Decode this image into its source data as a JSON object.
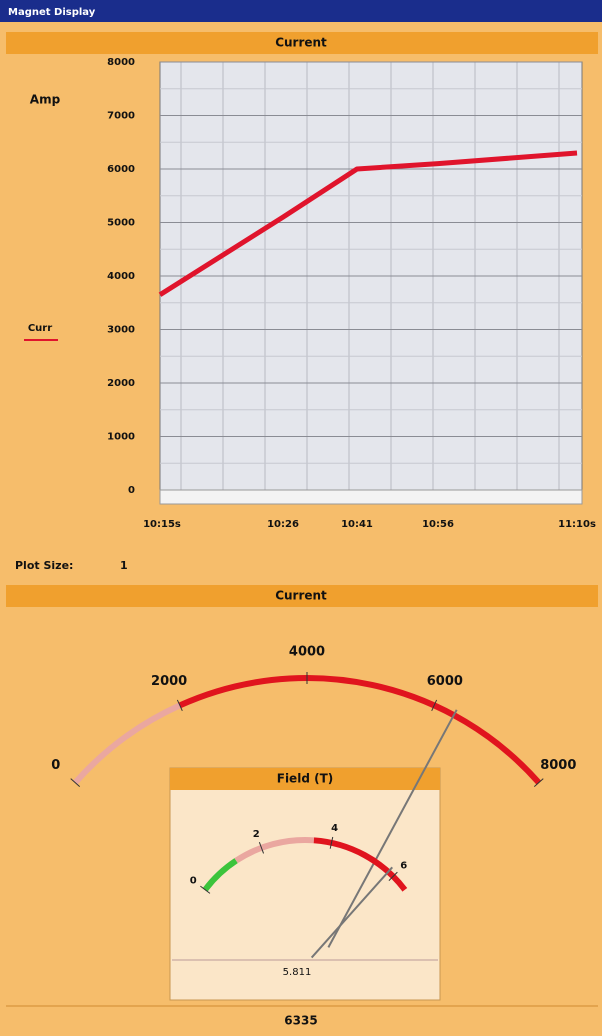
{
  "window_title": "Magnet Display",
  "chart_data": {
    "type": "line",
    "title": "Current",
    "y_label": "Amp",
    "categories": [
      "10:15s",
      "10:26",
      "10:41",
      "10:56",
      "11:10s"
    ],
    "series": [
      {
        "name": "Curr",
        "color": "#e0142c",
        "values": [
          3650,
          5100,
          6000,
          6100,
          6300
        ]
      }
    ],
    "ylim": [
      0,
      8000
    ],
    "yticks": [
      0,
      1000,
      2000,
      3000,
      4000,
      5000,
      6000,
      7000,
      8000
    ],
    "grid": true
  },
  "plot_size": {
    "label": "Plot Size:",
    "value": 1
  },
  "gauge": {
    "title": "Current",
    "range": [
      0,
      8000
    ],
    "ticks": [
      0,
      2000,
      4000,
      6000,
      8000
    ],
    "zones": [
      {
        "from": 0,
        "to": 2000,
        "color": "#eaa7a0"
      },
      {
        "from": 2000,
        "to": 8000,
        "color": "#e0141e"
      }
    ],
    "value": 6335
  },
  "field_gauge": {
    "title": "Field (T)",
    "range": [
      0,
      6.5
    ],
    "ticks": [
      0,
      2,
      4,
      6
    ],
    "zones": [
      {
        "from": 0,
        "to": 1.2,
        "color": "#3cc43c"
      },
      {
        "from": 1.2,
        "to": 3.5,
        "color": "#eaa7a0"
      },
      {
        "from": 3.5,
        "to": 6.5,
        "color": "#e0141e"
      }
    ],
    "value": 5.811
  }
}
